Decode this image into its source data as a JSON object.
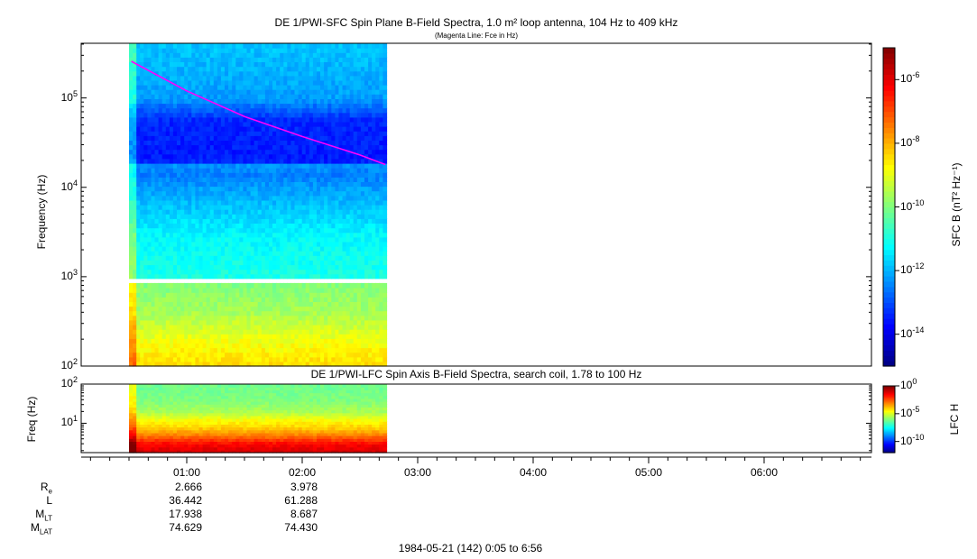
{
  "chart_data": [
    {
      "type": "heatmap",
      "title": "DE 1/PWI-SFC  Spin Plane B-Field Spectra, 1.0 m² loop antenna, 104 Hz to 409 kHz",
      "subtitle": "(Magenta Line: Fce in Hz)",
      "ylabel": "Frequency (Hz)",
      "yscale": "log",
      "ylim": [
        100,
        409000
      ],
      "yticks": [
        "10^2",
        "10^3",
        "10^4",
        "10^5"
      ],
      "xlim_hours": [
        0.0833,
        6.933
      ],
      "data_time_range_hours": [
        0.5,
        2.73
      ],
      "data_gap_hz": [
        880,
        1000
      ],
      "colorbar": {
        "label": "SFC B (nT² Hz⁻¹)",
        "log_range": [
          -15,
          -5
        ],
        "ticks": [
          "-6",
          "-8",
          "-10",
          "-12",
          "-14"
        ]
      },
      "band_profile": {
        "freq_hz": [
          100,
          200,
          400,
          880,
          1000,
          3000,
          10000,
          15000,
          17000,
          20000,
          56000,
          100000,
          409000
        ],
        "log_level": [
          -8.4,
          -8.9,
          -9.6,
          -10.0,
          -11.0,
          -11.3,
          -12.2,
          -12.6,
          -12.0,
          -13.5,
          -13.4,
          -12.2,
          -11.8
        ]
      },
      "fce_line": {
        "time_hours": [
          0.52,
          1.0,
          1.5,
          2.0,
          2.5,
          2.72
        ],
        "freq_hz": [
          257000,
          120000,
          62000,
          37000,
          23000,
          18000
        ],
        "color": "#ff00ff"
      }
    },
    {
      "type": "heatmap",
      "title": "DE 1/PWI-LFC  Spin Axis B-Field Spectra, search coil, 1.78 to 100 Hz",
      "ylabel": "Freq (Hz)",
      "yscale": "log",
      "ylim": [
        1.78,
        100
      ],
      "yticks": [
        "10^1",
        "10^2"
      ],
      "colorbar": {
        "label": "LFC H",
        "log_range": [
          -12,
          0
        ],
        "ticks": [
          "0",
          "-5",
          "-10"
        ]
      },
      "band_profile": {
        "freq_hz": [
          1.78,
          3,
          4,
          5,
          8,
          12,
          20,
          40,
          100
        ],
        "log_level": [
          -1.0,
          -1.5,
          -2.3,
          -3.0,
          -4.0,
          -4.5,
          -5.5,
          -6.0,
          -6.2
        ]
      }
    }
  ],
  "xaxis": {
    "ticks": [
      "01:00",
      "02:00",
      "03:00",
      "04:00",
      "05:00",
      "06:00"
    ],
    "footer": "1984-05-21 (142) 0:05 to 6:56"
  },
  "ephemeris": {
    "labels": [
      {
        "main": "R",
        "sub": "e"
      },
      {
        "main": "L",
        "sub": ""
      },
      {
        "main": "M",
        "sub": "LT"
      },
      {
        "main": "M",
        "sub": "LAT"
      }
    ],
    "columns": [
      {
        "time": "01:00",
        "values": [
          "2.666",
          "36.442",
          "17.938",
          "74.629"
        ]
      },
      {
        "time": "02:00",
        "values": [
          "3.978",
          "61.288",
          "8.687",
          "74.430"
        ]
      }
    ]
  }
}
